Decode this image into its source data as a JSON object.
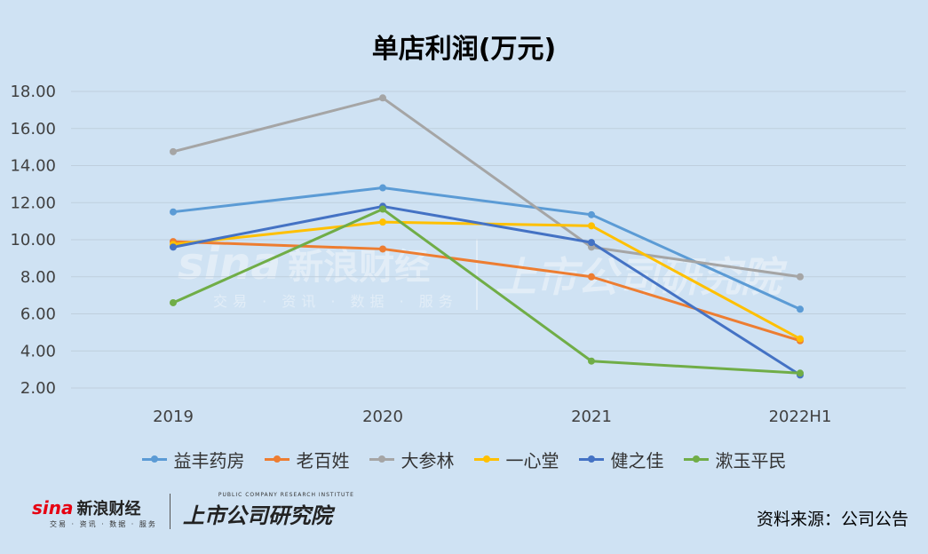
{
  "chart_data": {
    "type": "line",
    "title": "单店利润(万元)",
    "categories": [
      "2019",
      "2020",
      "2021",
      "2022H1"
    ],
    "ylim": [
      2,
      18
    ],
    "yticks": [
      "2.00",
      "4.00",
      "6.00",
      "8.00",
      "10.00",
      "12.00",
      "14.00",
      "16.00",
      "18.00"
    ],
    "grid": true,
    "legend_position": "bottom",
    "series": [
      {
        "name": "益丰药房",
        "color": "#5b9bd5",
        "values": [
          11.5,
          12.8,
          11.35,
          6.25
        ]
      },
      {
        "name": "老百姓",
        "color": "#ed7d31",
        "values": [
          9.9,
          9.5,
          8.0,
          4.55
        ]
      },
      {
        "name": "大参林",
        "color": "#a5a5a5",
        "values": [
          14.75,
          17.65,
          9.6,
          8.0
        ]
      },
      {
        "name": "一心堂",
        "color": "#ffc000",
        "values": [
          9.75,
          10.95,
          10.75,
          4.65
        ]
      },
      {
        "name": "健之佳",
        "color": "#4472c4",
        "values": [
          9.6,
          11.8,
          9.85,
          2.7
        ]
      },
      {
        "name": "漱玉平民",
        "color": "#70ad47",
        "values": [
          6.6,
          11.65,
          3.45,
          2.8
        ]
      }
    ]
  },
  "footer": {
    "sina_word": "sina",
    "sina_cn": "新浪财经",
    "sina_sub": "交易 · 资讯 · 数据 · 服务",
    "inst_en": "PUBLIC COMPANY RESEARCH INSTITUTE",
    "inst_cn": "上市公司研究院",
    "source": "资料来源：公司公告"
  }
}
